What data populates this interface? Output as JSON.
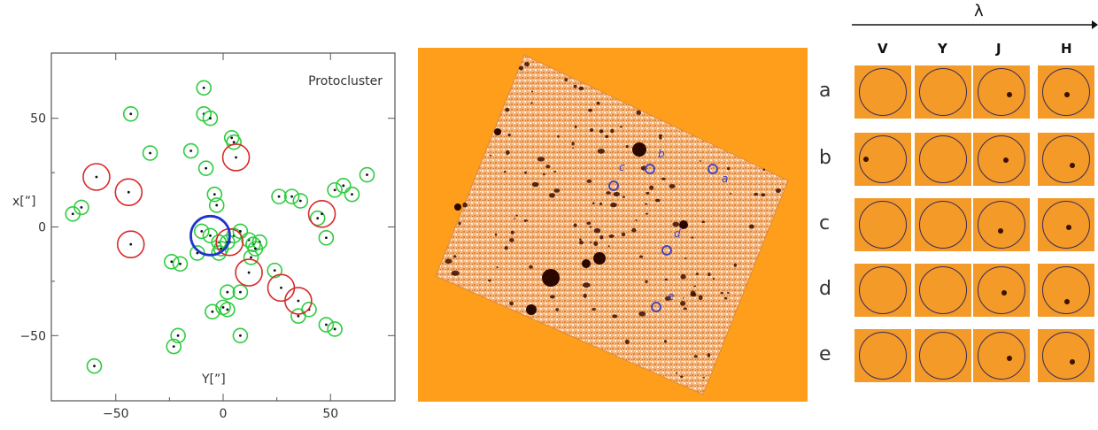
{
  "scatter": {
    "title": "Protocluster",
    "xlabel": "Y[”]",
    "ylabel": "x[”]",
    "xticks": [
      -50,
      0,
      50
    ],
    "yticks": [
      50,
      0,
      -50
    ]
  },
  "chart_data": {
    "type": "scatter",
    "title": "Protocluster",
    "xlabel": "Y[”]",
    "ylabel": "x[”]",
    "xlim": [
      -80,
      80
    ],
    "ylim": [
      -80,
      80
    ],
    "series": [
      {
        "color": "#2ecc40",
        "points": [
          [
            -9,
            64
          ],
          [
            -9,
            52
          ],
          [
            -6,
            50
          ],
          [
            -43,
            52
          ],
          [
            -34,
            34
          ],
          [
            -15,
            35
          ],
          [
            -8,
            27
          ],
          [
            4,
            41
          ],
          [
            5,
            39
          ],
          [
            -4,
            15
          ],
          [
            -3,
            10
          ],
          [
            -10,
            -2
          ],
          [
            -6,
            -4
          ],
          [
            -2,
            -7
          ],
          [
            -1,
            -10
          ],
          [
            2,
            -7
          ],
          [
            5,
            -4
          ],
          [
            8,
            -2
          ],
          [
            12,
            -6
          ],
          [
            14,
            -8
          ],
          [
            17,
            -7
          ],
          [
            -12,
            -12
          ],
          [
            -2,
            -12
          ],
          [
            15,
            -10
          ],
          [
            13,
            -14
          ],
          [
            -24,
            -16
          ],
          [
            -20,
            -17
          ],
          [
            2,
            -30
          ],
          [
            8,
            -30
          ],
          [
            0,
            -37
          ],
          [
            2,
            -38
          ],
          [
            -5,
            -39
          ],
          [
            24,
            -20
          ],
          [
            35,
            -41
          ],
          [
            40,
            -38
          ],
          [
            48,
            -45
          ],
          [
            52,
            -47
          ],
          [
            8,
            -50
          ],
          [
            -21,
            -50
          ],
          [
            -23,
            -55
          ],
          [
            -60,
            -64
          ],
          [
            -66,
            9
          ],
          [
            -70,
            6
          ],
          [
            26,
            14
          ],
          [
            32,
            14
          ],
          [
            36,
            12
          ],
          [
            44,
            4
          ],
          [
            48,
            -5
          ],
          [
            52,
            17
          ],
          [
            56,
            19
          ],
          [
            60,
            15
          ],
          [
            67,
            24
          ]
        ]
      },
      {
        "color": "#d62a2a",
        "points": [
          [
            -59,
            23
          ],
          [
            -44,
            16
          ],
          [
            -43,
            -8
          ],
          [
            6,
            32
          ],
          [
            3,
            -7
          ],
          [
            12,
            -21
          ],
          [
            27,
            -28
          ],
          [
            35,
            -34
          ],
          [
            46,
            6
          ]
        ]
      },
      {
        "color": "#2233cc",
        "points": [
          [
            -6,
            -4
          ]
        ]
      }
    ],
    "grid": false
  },
  "image": {
    "labels": [
      {
        "text": "a",
        "color": "#3b3fbf"
      },
      {
        "text": "b",
        "color": "#3b3fbf"
      },
      {
        "text": "c",
        "color": "#3b3fbf"
      },
      {
        "text": "d",
        "color": "#3b3fbf"
      },
      {
        "text": "e",
        "color": "#3b3fbf"
      }
    ]
  },
  "stamps": {
    "lambda": "λ",
    "columns": [
      "V",
      "Y",
      "J",
      "H"
    ],
    "rows": [
      "a",
      "b",
      "c",
      "d",
      "e"
    ]
  },
  "colors": {
    "background_orange": "#ff9e1a",
    "green_circle": "#2ecc40",
    "red_circle": "#d62a2a",
    "blue_circle": "#2233cc"
  }
}
